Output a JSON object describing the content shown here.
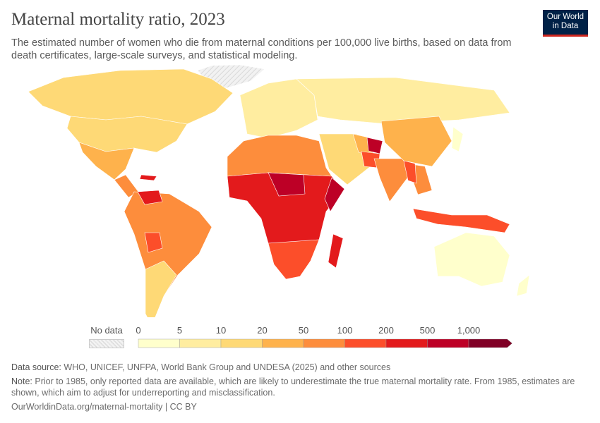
{
  "header": {
    "title": "Maternal mortality ratio, 2023",
    "subtitle": "The estimated number of women who die from maternal conditions per 100,000 live births, based on data from death certificates, large-scale surveys, and statistical modeling.",
    "logo": "Our World in Data"
  },
  "legend": {
    "no_data_label": "No data",
    "ticks": [
      "0",
      "5",
      "10",
      "20",
      "50",
      "100",
      "200",
      "500",
      "1,000"
    ],
    "colors": [
      "#ffffcc",
      "#ffeda0",
      "#fed976",
      "#feb24c",
      "#fd8d3c",
      "#fc4e2a",
      "#e31a1c",
      "#bd0026",
      "#800026"
    ],
    "no_data_color": "#e5e5e5"
  },
  "footer": {
    "source_label": "Data source:",
    "source_text": " WHO, UNICEF, UNFPA, World Bank Group and UNDESA (2025) and other sources",
    "note_label": "Note:",
    "note_text": " Prior to 1985, only reported data are available, which are likely to underestimate the true maternal mortality rate. From 1985, estimates are shown, which aim to adjust for underreporting and misclassification.",
    "url": "OurWorldinData.org/maternal-mortality | CC BY"
  }
}
